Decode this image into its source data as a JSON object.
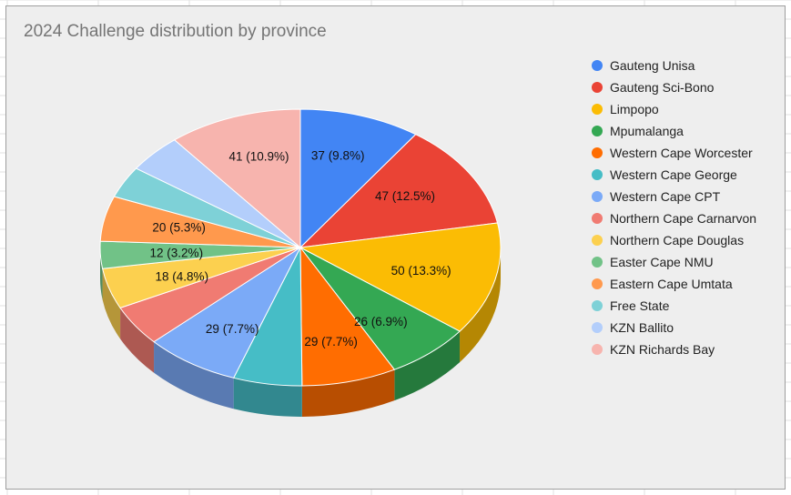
{
  "chart_data": {
    "type": "pie",
    "title": "2024 Challenge distribution by province",
    "legend_position": "right",
    "three_d": true,
    "categories": [
      "Gauteng Unisa",
      "Gauteng Sci-Bono",
      "Limpopo",
      "Mpumalanga",
      "Western Cape Worcester",
      "Western Cape George",
      "Western Cape CPT",
      "Northern Cape Carnarvon",
      "Northern Cape Douglas",
      "Easter Cape NMU",
      "Eastern Cape Umtata",
      "Free State",
      "KZN Ballito",
      "KZN Richards Bay"
    ],
    "values": [
      37,
      47,
      50,
      26,
      29,
      21,
      29,
      18,
      18,
      12,
      20,
      14,
      17,
      41
    ],
    "colors": [
      "#4285f4",
      "#ea4335",
      "#fbbc04",
      "#34a853",
      "#ff6d01",
      "#46bdc6",
      "#7baaf7",
      "#f07b72",
      "#fcd04f",
      "#71c287",
      "#ff994d",
      "#7ed1d7",
      "#b3cefb",
      "#f7b4ae"
    ],
    "data_labels": [
      "37 (9.8%)",
      "47 (12.5%)",
      "50 (13.3%)",
      "26 (6.9%)",
      "29 (7.7%)",
      "",
      "29 (7.7%)",
      "",
      "18 (4.8%)",
      "12 (3.2%)",
      "20 (5.3%)",
      "",
      "",
      "41 (10.9%)"
    ]
  }
}
